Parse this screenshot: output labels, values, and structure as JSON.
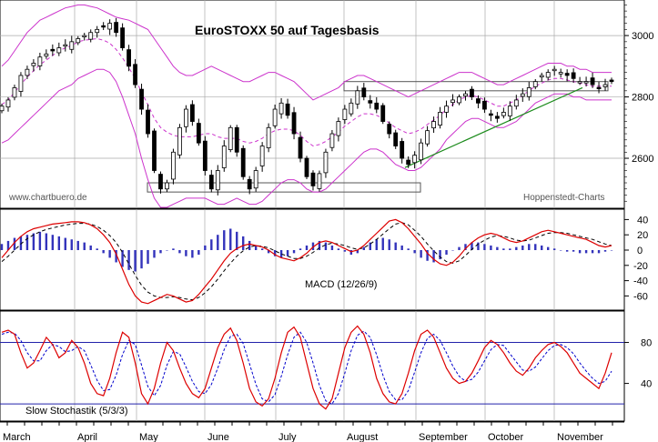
{
  "chart_data": [
    {
      "type": "candlestick",
      "title": "EuroSTOXX 50 auf Tagesbasis",
      "source_left": "www.chartbuero.de",
      "source_right": "Hoppenstedt-Charts",
      "y_ticks": [
        2600,
        2800,
        3000
      ],
      "ylim": [
        2440,
        3110
      ],
      "x_months": [
        "March",
        "April",
        "May",
        "June",
        "July",
        "August",
        "September",
        "October",
        "November"
      ],
      "close_series": [
        2770,
        2790,
        2830,
        2870,
        2890,
        2910,
        2930,
        2940,
        2950,
        2960,
        2970,
        2980,
        2990,
        3000,
        3010,
        3020,
        3030,
        3040,
        3010,
        2960,
        2900,
        2840,
        2760,
        2680,
        2560,
        2500,
        2520,
        2620,
        2700,
        2760,
        2720,
        2650,
        2560,
        2500,
        2560,
        2640,
        2700,
        2620,
        2540,
        2500,
        2560,
        2640,
        2700,
        2760,
        2780,
        2740,
        2680,
        2600,
        2540,
        2510,
        2550,
        2620,
        2680,
        2720,
        2760,
        2780,
        2820,
        2800,
        2780,
        2760,
        2720,
        2680,
        2640,
        2600,
        2580,
        2610,
        2650,
        2690,
        2720,
        2750,
        2770,
        2790,
        2800,
        2810,
        2800,
        2780,
        2760,
        2740,
        2730,
        2750,
        2770,
        2790,
        2810,
        2830,
        2850,
        2870,
        2880,
        2890,
        2880,
        2870,
        2860,
        2850,
        2850,
        2840,
        2830,
        2840,
        2850
      ],
      "upper_band": [
        2900,
        2920,
        2950,
        2980,
        3010,
        3030,
        3050,
        3060,
        3070,
        3080,
        3090,
        3095,
        3100,
        3100,
        3095,
        3090,
        3080,
        3070,
        3060,
        3055,
        3050,
        3040,
        3030,
        3020,
        2990,
        2960,
        2930,
        2900,
        2880,
        2870,
        2870,
        2880,
        2890,
        2900,
        2890,
        2880,
        2870,
        2860,
        2850,
        2850,
        2860,
        2870,
        2880,
        2880,
        2870,
        2860,
        2850,
        2830,
        2810,
        2790,
        2800,
        2810,
        2820,
        2830,
        2850,
        2860,
        2870,
        2870,
        2860,
        2850,
        2840,
        2830,
        2820,
        2810,
        2800,
        2810,
        2820,
        2830,
        2840,
        2850,
        2860,
        2870,
        2880,
        2880,
        2880,
        2870,
        2860,
        2850,
        2840,
        2840,
        2850,
        2860,
        2870,
        2880,
        2890,
        2900,
        2910,
        2910,
        2910,
        2900,
        2900,
        2890,
        2890,
        2880,
        2880,
        2880,
        2880
      ],
      "lower_band": [
        2650,
        2660,
        2680,
        2700,
        2720,
        2740,
        2760,
        2780,
        2800,
        2820,
        2830,
        2840,
        2860,
        2870,
        2880,
        2890,
        2890,
        2880,
        2850,
        2800,
        2740,
        2680,
        2600,
        2530,
        2470,
        2440,
        2440,
        2450,
        2460,
        2470,
        2470,
        2470,
        2470,
        2460,
        2450,
        2450,
        2460,
        2470,
        2460,
        2450,
        2450,
        2460,
        2480,
        2500,
        2520,
        2530,
        2530,
        2520,
        2500,
        2490,
        2490,
        2500,
        2520,
        2540,
        2560,
        2580,
        2600,
        2620,
        2630,
        2630,
        2620,
        2600,
        2580,
        2570,
        2560,
        2560,
        2570,
        2590,
        2610,
        2630,
        2660,
        2680,
        2700,
        2720,
        2730,
        2730,
        2720,
        2710,
        2700,
        2700,
        2710,
        2720,
        2740,
        2760,
        2780,
        2790,
        2800,
        2810,
        2810,
        2810,
        2800,
        2800,
        2790,
        2790,
        2790,
        2790,
        2790
      ],
      "support_rect": [
        2490,
        2520
      ],
      "resistance_rect": [
        2820,
        2850
      ],
      "trend_line": [
        2570,
        2830
      ]
    },
    {
      "type": "line",
      "title": "MACD (12/26/9)",
      "y_ticks": [
        40,
        20,
        0,
        -20,
        -40,
        -60
      ],
      "ylim": [
        -75,
        50
      ],
      "macd": [
        -10,
        0,
        10,
        18,
        24,
        28,
        30,
        32,
        34,
        35,
        36,
        37,
        37,
        36,
        33,
        28,
        20,
        10,
        -5,
        -25,
        -45,
        -60,
        -68,
        -70,
        -66,
        -62,
        -58,
        -60,
        -64,
        -68,
        -66,
        -58,
        -48,
        -38,
        -26,
        -14,
        -4,
        2,
        6,
        8,
        6,
        4,
        0,
        -6,
        -10,
        -12,
        -14,
        -10,
        -4,
        4,
        10,
        12,
        10,
        6,
        2,
        -2,
        0,
        6,
        14,
        22,
        30,
        38,
        40,
        36,
        28,
        18,
        8,
        -4,
        -12,
        -18,
        -20,
        -16,
        -8,
        2,
        10,
        16,
        20,
        22,
        20,
        16,
        12,
        10,
        12,
        16,
        20,
        24,
        26,
        24,
        22,
        20,
        18,
        16,
        14,
        10,
        6,
        4,
        6
      ],
      "signal": [
        -15,
        -8,
        0,
        8,
        15,
        20,
        24,
        27,
        29,
        31,
        33,
        34,
        35,
        35,
        34,
        31,
        26,
        19,
        10,
        -3,
        -18,
        -33,
        -46,
        -55,
        -60,
        -62,
        -62,
        -61,
        -62,
        -64,
        -65,
        -62,
        -56,
        -48,
        -38,
        -27,
        -17,
        -8,
        -1,
        4,
        6,
        5,
        3,
        -1,
        -5,
        -8,
        -11,
        -11,
        -8,
        -3,
        3,
        7,
        9,
        8,
        6,
        3,
        1,
        3,
        8,
        14,
        21,
        28,
        34,
        36,
        33,
        26,
        18,
        8,
        -1,
        -9,
        -15,
        -17,
        -14,
        -7,
        1,
        8,
        13,
        17,
        19,
        18,
        16,
        13,
        12,
        13,
        16,
        19,
        22,
        23,
        23,
        22,
        20,
        18,
        16,
        14,
        11,
        8,
        6
      ],
      "hist": [
        8,
        12,
        16,
        18,
        20,
        22,
        24,
        22,
        20,
        18,
        16,
        14,
        12,
        10,
        6,
        2,
        -4,
        -10,
        -16,
        -22,
        -26,
        -28,
        -24,
        -18,
        -10,
        -4,
        0,
        2,
        -4,
        -8,
        -10,
        -6,
        6,
        14,
        20,
        26,
        28,
        24,
        18,
        12,
        6,
        2,
        -4,
        -8,
        -10,
        -8,
        -4,
        2,
        6,
        10,
        12,
        10,
        6,
        2,
        -2,
        -6,
        -4,
        4,
        10,
        14,
        16,
        14,
        10,
        6,
        2,
        -4,
        -10,
        -14,
        -16,
        -12,
        -6,
        0,
        4,
        8,
        10,
        10,
        8,
        6,
        4,
        2,
        2,
        4,
        6,
        8,
        8,
        6,
        4,
        2,
        0,
        -2,
        -2,
        -4,
        -4,
        -4,
        -4,
        -2,
        0
      ]
    },
    {
      "type": "line",
      "title": "Slow Stochastik (5/3/3)",
      "y_ticks": [
        80,
        40
      ],
      "ylim": [
        5,
        108
      ],
      "hlines": [
        80,
        20
      ],
      "k": [
        90,
        92,
        88,
        70,
        55,
        60,
        72,
        85,
        78,
        65,
        70,
        82,
        75,
        60,
        40,
        30,
        28,
        45,
        70,
        90,
        85,
        60,
        30,
        20,
        35,
        60,
        80,
        72,
        55,
        40,
        30,
        26,
        35,
        55,
        75,
        88,
        94,
        82,
        60,
        35,
        22,
        18,
        25,
        45,
        70,
        90,
        95,
        85,
        60,
        35,
        20,
        15,
        25,
        50,
        75,
        90,
        96,
        88,
        70,
        45,
        30,
        22,
        20,
        30,
        50,
        72,
        88,
        92,
        85,
        70,
        55,
        45,
        40,
        42,
        50,
        62,
        75,
        82,
        78,
        70,
        60,
        52,
        48,
        55,
        65,
        72,
        78,
        80,
        76,
        70,
        60,
        50,
        45,
        40,
        35,
        50,
        70
      ],
      "d": [
        88,
        90,
        89,
        82,
        70,
        62,
        62,
        72,
        78,
        76,
        71,
        72,
        76,
        72,
        58,
        43,
        33,
        34,
        48,
        68,
        82,
        78,
        58,
        37,
        28,
        38,
        58,
        71,
        69,
        56,
        42,
        32,
        30,
        39,
        55,
        73,
        86,
        88,
        79,
        59,
        39,
        25,
        22,
        29,
        47,
        68,
        85,
        90,
        80,
        60,
        38,
        23,
        20,
        30,
        50,
        72,
        87,
        91,
        85,
        68,
        48,
        32,
        24,
        24,
        33,
        51,
        70,
        84,
        88,
        82,
        70,
        57,
        47,
        42,
        44,
        51,
        62,
        73,
        78,
        77,
        69,
        61,
        53,
        52,
        56,
        64,
        72,
        77,
        78,
        75,
        69,
        60,
        52,
        45,
        40,
        42,
        52
      ]
    }
  ]
}
